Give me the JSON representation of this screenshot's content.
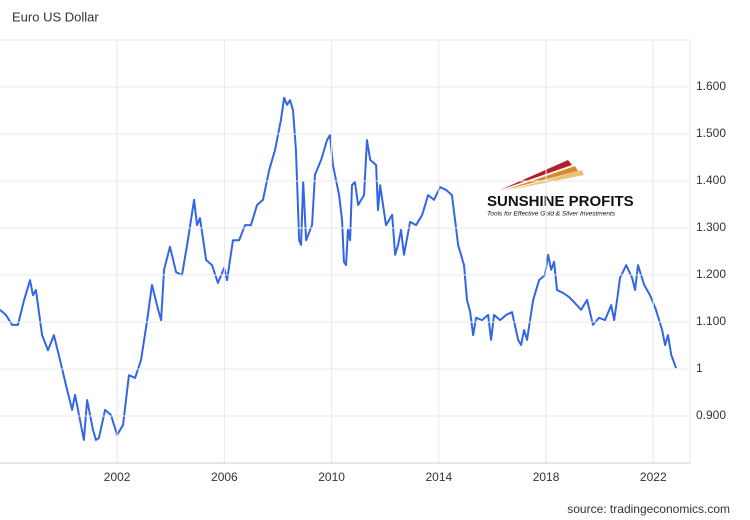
{
  "chart_data": {
    "type": "line",
    "title": "Euro US Dollar",
    "x": [
      1997.63,
      1997.85,
      1998.08,
      1998.3,
      1998.53,
      1998.75,
      1998.86,
      1998.97,
      1999.2,
      1999.42,
      1999.64,
      1999.87,
      2000.09,
      2000.32,
      2000.43,
      2000.65,
      2000.76,
      2000.88,
      2001.1,
      2001.21,
      2001.32,
      2001.55,
      2001.77,
      2002.0,
      2002.22,
      2002.44,
      2002.67,
      2002.89,
      2003.11,
      2003.3,
      2003.53,
      2003.64,
      2003.75,
      2003.97,
      2004.2,
      2004.42,
      2004.64,
      2004.87,
      2004.98,
      2005.09,
      2005.32,
      2005.54,
      2005.76,
      2005.99,
      2006.1,
      2006.32,
      2006.55,
      2006.77,
      2006.99,
      2007.22,
      2007.44,
      2007.67,
      2007.89,
      2008.11,
      2008.23,
      2008.34,
      2008.45,
      2008.56,
      2008.67,
      2008.79,
      2008.86,
      2008.94,
      2009.05,
      2009.27,
      2009.38,
      2009.61,
      2009.83,
      2009.94,
      2010.05,
      2010.28,
      2010.39,
      2010.46,
      2010.54,
      2010.61,
      2010.69,
      2010.76,
      2010.87,
      2010.99,
      2011.21,
      2011.32,
      2011.44,
      2011.66,
      2011.73,
      2011.81,
      2012.03,
      2012.26,
      2012.37,
      2012.48,
      2012.59,
      2012.7,
      2012.93,
      2013.15,
      2013.38,
      2013.6,
      2013.82,
      2014.05,
      2014.27,
      2014.49,
      2014.72,
      2014.94,
      2015.05,
      2015.17,
      2015.28,
      2015.39,
      2015.61,
      2015.84,
      2015.95,
      2016.06,
      2016.29,
      2016.51,
      2016.73,
      2016.96,
      2017.07,
      2017.18,
      2017.29,
      2017.52,
      2017.74,
      2017.96,
      2018.08,
      2018.19,
      2018.3,
      2018.41,
      2018.63,
      2018.86,
      2019.08,
      2019.31,
      2019.53,
      2019.75,
      2019.98,
      2020.2,
      2020.43,
      2020.54,
      2020.65,
      2020.76,
      2020.99,
      2021.21,
      2021.32,
      2021.43,
      2021.66,
      2021.88,
      2022.1,
      2022.33,
      2022.44,
      2022.55,
      2022.67,
      2022.85
    ],
    "series": [
      {
        "color": "#3366e6",
        "values": [
          1.126,
          1.115,
          1.094,
          1.094,
          1.147,
          1.189,
          1.157,
          1.168,
          1.072,
          1.04,
          1.072,
          1.019,
          0.966,
          0.913,
          0.945,
          0.881,
          0.849,
          0.934,
          0.87,
          0.849,
          0.853,
          0.913,
          0.902,
          0.86,
          0.881,
          0.987,
          0.981,
          1.019,
          1.1,
          1.179,
          1.126,
          1.104,
          1.211,
          1.26,
          1.206,
          1.2,
          1.274,
          1.36,
          1.306,
          1.321,
          1.232,
          1.221,
          1.183,
          1.215,
          1.189,
          1.274,
          1.274,
          1.306,
          1.306,
          1.349,
          1.36,
          1.423,
          1.466,
          1.53,
          1.577,
          1.562,
          1.572,
          1.551,
          1.466,
          1.274,
          1.264,
          1.398,
          1.274,
          1.306,
          1.413,
          1.445,
          1.487,
          1.498,
          1.434,
          1.37,
          1.317,
          1.228,
          1.221,
          1.296,
          1.274,
          1.391,
          1.398,
          1.349,
          1.37,
          1.487,
          1.445,
          1.434,
          1.338,
          1.391,
          1.306,
          1.328,
          1.243,
          1.264,
          1.296,
          1.243,
          1.313,
          1.306,
          1.328,
          1.37,
          1.36,
          1.387,
          1.381,
          1.37,
          1.264,
          1.221,
          1.147,
          1.121,
          1.072,
          1.109,
          1.104,
          1.115,
          1.062,
          1.115,
          1.104,
          1.115,
          1.121,
          1.062,
          1.051,
          1.083,
          1.062,
          1.147,
          1.189,
          1.2,
          1.243,
          1.211,
          1.228,
          1.168,
          1.162,
          1.153,
          1.14,
          1.126,
          1.147,
          1.094,
          1.109,
          1.104,
          1.136,
          1.104,
          1.147,
          1.194,
          1.221,
          1.194,
          1.168,
          1.221,
          1.179,
          1.157,
          1.126,
          1.083,
          1.051,
          1.072,
          1.03,
          1.002
        ]
      }
    ],
    "xlim": [
      1997.63,
      2023.37
    ],
    "xticks": [
      2002,
      2006,
      2010,
      2014,
      2018,
      2022
    ],
    "ylim": [
      0.8,
      1.7
    ],
    "yticks": [
      {
        "value": 0.9,
        "label": "0.900"
      },
      1,
      {
        "value": 1.1,
        "label": "1.100"
      },
      {
        "value": 1.2,
        "label": "1.200"
      },
      {
        "value": 1.3,
        "label": "1.300"
      },
      {
        "value": 1.4,
        "label": "1.400"
      },
      {
        "value": 1.5,
        "label": "1.500"
      },
      {
        "value": 1.6,
        "label": "1.600"
      }
    ],
    "grid": true,
    "source": "source: tradingeconomics.com"
  },
  "logo": {
    "title": "SUNSHINE PROFITS",
    "tagline": "Tools for Effective Gold & Silver Investments"
  }
}
